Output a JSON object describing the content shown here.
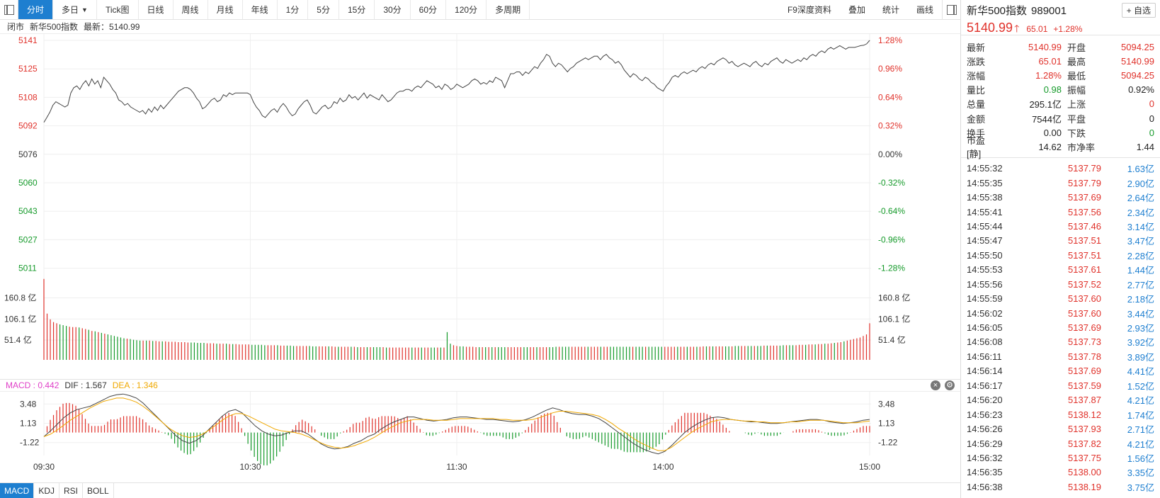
{
  "toolbar": {
    "tabs": [
      {
        "label": "分时",
        "active": true
      },
      {
        "label": "多日",
        "dropdown": true
      },
      {
        "label": "Tick图"
      },
      {
        "label": "日线"
      },
      {
        "label": "周线"
      },
      {
        "label": "月线"
      },
      {
        "label": "年线"
      },
      {
        "label": "1分"
      },
      {
        "label": "5分"
      },
      {
        "label": "15分"
      },
      {
        "label": "30分"
      },
      {
        "label": "60分"
      },
      {
        "label": "120分"
      },
      {
        "label": "多周期"
      }
    ],
    "right_tabs": [
      "F9深度资料",
      "叠加",
      "统计",
      "画线"
    ]
  },
  "infobar": {
    "status": "闭市",
    "name": "新华500指数",
    "latest": "最新：5140.99"
  },
  "chart_data": {
    "type": "line",
    "price_axis_left": [
      "5141",
      "5125",
      "5108",
      "5092",
      "5076",
      "5060",
      "5043",
      "5027",
      "5011"
    ],
    "pct_axis_right": [
      "1.28%",
      "0.96%",
      "0.64%",
      "0.32%",
      "0.00%",
      "-0.32%",
      "-0.64%",
      "-0.96%",
      "-1.28%"
    ],
    "price_range": [
      5011,
      5141
    ],
    "prev_close": 5076,
    "volume_axis": [
      "160.8 亿",
      "106.1 亿",
      "51.4 亿"
    ],
    "volume_range": [
      0,
      215
    ],
    "time_labels": [
      "09:30",
      "10:30",
      "11:30",
      "14:00",
      "15:00"
    ],
    "price_series": [
      5094.25,
      5097,
      5100,
      5104,
      5106,
      5105,
      5104,
      5103,
      5104,
      5111,
      5114,
      5115,
      5113,
      5116,
      5118,
      5115,
      5119,
      5116,
      5118,
      5114,
      5120,
      5118,
      5116,
      5113,
      5111,
      5107,
      5106,
      5104,
      5105,
      5103,
      5102,
      5101,
      5100,
      5101,
      5099,
      5102,
      5100,
      5103,
      5101,
      5104,
      5102,
      5104,
      5106,
      5108,
      5110,
      5112,
      5113,
      5114,
      5114,
      5113,
      5111,
      5108,
      5106,
      5102,
      5103,
      5105,
      5107,
      5108,
      5106,
      5107,
      5110,
      5109,
      5111,
      5110,
      5111,
      5111,
      5111,
      5111,
      5111,
      5110,
      5106,
      5103,
      5101,
      5098,
      5097,
      5099,
      5101,
      5102,
      5100,
      5103,
      5105,
      5103,
      5100,
      5098,
      5099,
      5102,
      5104,
      5106,
      5107,
      5104,
      5100,
      5099,
      5101,
      5103,
      5104,
      5102,
      5103,
      5106,
      5105,
      5108,
      5106,
      5107,
      5110,
      5108,
      5109,
      5107,
      5109,
      5111,
      5108,
      5110,
      5109,
      5108,
      5107,
      5110,
      5108,
      5106,
      5107,
      5109,
      5111,
      5112,
      5112,
      5113,
      5113,
      5112,
      5114,
      5115,
      5114,
      5116,
      5118,
      5117,
      5116,
      5114,
      5115,
      5113,
      5116,
      5115,
      5113,
      5114,
      5116,
      5115,
      5114,
      5115,
      5116,
      5118,
      5119,
      5118,
      5116,
      5117,
      5116,
      5118,
      5117,
      5120,
      5119,
      5118,
      5114,
      5118,
      5122,
      5122,
      5123,
      5123,
      5121,
      5123,
      5122,
      5124,
      5126,
      5125,
      5128,
      5130,
      5133,
      5132,
      5128,
      5126,
      5128,
      5127,
      5125,
      5123,
      5125,
      5126,
      5128,
      5129,
      5130,
      5131,
      5130,
      5131,
      5132,
      5132,
      5130,
      5132,
      5133,
      5131,
      5130,
      5128,
      5129,
      5127,
      5124,
      5122,
      5120,
      5122,
      5121,
      5119,
      5118,
      5120,
      5119,
      5117,
      5116,
      5114,
      5113,
      5112,
      5115,
      5117,
      5120,
      5121,
      5120,
      5122,
      5123,
      5122,
      5123,
      5124,
      5123,
      5125,
      5126,
      5125,
      5127,
      5128,
      5127,
      5129,
      5130,
      5131,
      5130,
      5128,
      5129,
      5127,
      5126,
      5127,
      5128,
      5127,
      5126,
      5128,
      5129,
      5127,
      5126,
      5128,
      5127,
      5129,
      5130,
      5131,
      5129,
      5128,
      5130,
      5129,
      5128,
      5129,
      5130,
      5129,
      5131,
      5130,
      5132,
      5133,
      5132,
      5134,
      5135,
      5134,
      5136,
      5137,
      5136,
      5137,
      5138,
      5137,
      5136,
      5137,
      5137,
      5137,
      5137.5,
      5138,
      5138.2,
      5139,
      5140.99
    ],
    "volume_series": [
      210,
      120,
      105,
      98,
      95,
      92,
      90,
      88,
      86,
      85,
      85,
      84,
      82,
      80,
      78,
      75,
      74,
      72,
      70,
      68,
      66,
      64,
      62,
      60,
      58,
      56,
      55,
      54,
      52,
      51,
      50,
      50,
      50,
      50,
      49,
      49,
      48,
      48,
      48,
      47,
      47,
      47,
      46,
      46,
      46,
      45,
      45,
      45,
      44,
      44,
      44,
      43,
      43,
      43,
      42,
      42,
      42,
      42,
      41,
      41,
      41,
      40,
      40,
      40,
      40,
      39,
      39,
      39,
      39,
      38,
      38,
      38,
      38,
      38,
      37,
      37,
      37,
      37,
      36,
      36,
      36,
      36,
      36,
      36,
      35,
      35,
      35,
      35,
      35,
      35,
      35,
      34,
      34,
      34,
      34,
      34,
      34,
      34,
      33,
      33,
      33,
      33,
      33,
      33,
      33,
      33,
      33,
      32,
      32,
      32,
      32,
      32,
      32,
      32,
      32,
      32,
      32,
      32,
      32,
      32,
      32,
      32,
      32,
      32,
      32,
      32,
      72,
      42,
      38,
      36,
      35,
      35,
      34,
      34,
      34,
      33,
      33,
      33,
      33,
      33,
      33,
      33,
      33,
      33,
      33,
      33,
      33,
      33,
      33,
      33,
      33,
      33,
      33,
      33,
      33,
      33,
      33,
      33,
      33,
      33,
      34,
      34,
      34,
      34,
      34,
      34,
      34,
      34,
      34,
      34,
      34,
      34,
      34,
      34,
      34,
      34,
      34,
      34,
      34,
      34,
      34,
      34,
      34,
      34,
      34,
      34,
      34,
      34,
      34,
      34,
      34,
      34,
      34,
      34,
      34,
      34,
      34,
      34,
      34,
      34,
      34,
      34,
      34,
      34,
      34,
      34,
      35,
      35,
      35,
      35,
      35,
      35,
      35,
      35,
      35,
      35,
      36,
      36,
      36,
      36,
      36,
      36,
      36,
      36,
      36,
      37,
      37,
      37,
      37,
      37,
      37,
      38,
      38,
      38,
      38,
      38,
      39,
      39,
      39,
      40,
      40,
      40,
      41,
      41,
      42,
      42,
      43,
      44,
      45,
      46,
      48,
      50,
      52,
      54,
      56,
      58,
      62,
      66,
      95
    ]
  },
  "macd": {
    "header": {
      "macd": "MACD : 0.442",
      "dif": "DIF : 1.567",
      "dea": "DEA : 1.346"
    },
    "axis": [
      "3.48",
      "1.13",
      "-1.22"
    ],
    "range": [
      -2.8,
      4.8
    ],
    "dif_series": [
      -0.5,
      0.2,
      1.0,
      1.8,
      2.4,
      2.8,
      3.0,
      3.2,
      3.6,
      4.0,
      4.4,
      4.6,
      4.7,
      4.5,
      4.2,
      3.6,
      2.8,
      2.0,
      1.2,
      0.4,
      -0.4,
      -1.0,
      -1.3,
      -1.0,
      -0.4,
      0.4,
      1.2,
      2.0,
      2.6,
      2.8,
      2.4,
      1.6,
      0.8,
      0.2,
      -0.2,
      -0.4,
      -0.3,
      0,
      0.2,
      0.2,
      -0.2,
      -0.8,
      -1.4,
      -1.8,
      -2.0,
      -1.9,
      -1.7,
      -1.3,
      -1.0,
      -0.5,
      -0.2,
      0.4,
      0.9,
      1.3,
      1.6,
      1.9,
      1.9,
      1.7,
      1.5,
      1.4,
      1.5,
      1.6,
      1.8,
      1.9,
      1.9,
      1.8,
      1.7,
      1.6,
      1.6,
      1.5,
      1.4,
      1.3,
      1.4,
      1.6,
      1.9,
      2.3,
      2.7,
      3.0,
      2.8,
      2.5,
      2.3,
      2.2,
      2.2,
      2.0,
      1.7,
      1.2,
      0.6,
      0,
      -0.6,
      -1.2,
      -1.7,
      -2.1,
      -2.4,
      -2.6,
      -2.3,
      -1.6,
      -0.8,
      0,
      0.6,
      1.1,
      1.5,
      1.8,
      1.9,
      1.8,
      1.6,
      1.5,
      1.4,
      1.3,
      1.3,
      1.2,
      1.1,
      1.1,
      1.2,
      1.3,
      1.4,
      1.5,
      1.6,
      1.6,
      1.5,
      1.3,
      1.2,
      1.1,
      1.2,
      1.3,
      1.5,
      1.6
    ],
    "dea_series": [
      -0.5,
      -0.2,
      0.3,
      0.9,
      1.5,
      2.0,
      2.5,
      3.0,
      3.4,
      3.8,
      4.0,
      4.2,
      4.2,
      4.0,
      3.7,
      3.2,
      2.6,
      1.9,
      1.2,
      0.5,
      0,
      -0.4,
      -0.6,
      -0.5,
      -0.2,
      0.3,
      0.9,
      1.5,
      2.0,
      2.3,
      2.3,
      2.0,
      1.6,
      1.2,
      0.8,
      0.4,
      0.2,
      0.1,
      0,
      -0.2,
      -0.5,
      -0.9,
      -1.3,
      -1.6,
      -1.8,
      -1.9,
      -1.8,
      -1.6,
      -1.3,
      -1.0,
      -0.6,
      -0.1,
      0.4,
      0.8,
      1.2,
      1.4,
      1.6,
      1.6,
      1.6,
      1.5,
      1.5,
      1.5,
      1.6,
      1.7,
      1.7,
      1.7,
      1.7,
      1.7,
      1.7,
      1.6,
      1.6,
      1.5,
      1.5,
      1.5,
      1.6,
      1.8,
      2.1,
      2.4,
      2.6,
      2.6,
      2.5,
      2.4,
      2.3,
      2.2,
      2.0,
      1.6,
      1.1,
      0.5,
      0,
      -0.6,
      -1.1,
      -1.5,
      -1.9,
      -2.2,
      -2.2,
      -1.8,
      -1.2,
      -0.6,
      0,
      0.5,
      0.9,
      1.3,
      1.5,
      1.6,
      1.6,
      1.5,
      1.4,
      1.4,
      1.3,
      1.3,
      1.2,
      1.2,
      1.2,
      1.3,
      1.3,
      1.4,
      1.5,
      1.5,
      1.5,
      1.4,
      1.3,
      1.2,
      1.2,
      1.2,
      1.3,
      1.4
    ]
  },
  "bottom_tabs": [
    {
      "label": "MACD",
      "active": true
    },
    {
      "label": "KDJ"
    },
    {
      "label": "RSI"
    },
    {
      "label": "BOLL"
    }
  ],
  "panel": {
    "name": "新华500指数",
    "code": "989001",
    "watch": "+ 自选",
    "price": "5140.99",
    "change": "65.01",
    "change_pct": "+1.28%",
    "stats": [
      {
        "k": "最新",
        "v": "5140.99",
        "vc": "red",
        "k2": "开盘",
        "v2": "5094.25",
        "v2c": "red"
      },
      {
        "k": "涨跌",
        "v": "65.01",
        "vc": "red",
        "k2": "最高",
        "v2": "5140.99",
        "v2c": "red"
      },
      {
        "k": "涨幅",
        "v": "1.28%",
        "vc": "red",
        "k2": "最低",
        "v2": "5094.25",
        "v2c": "red"
      },
      {
        "k": "量比",
        "v": "0.98",
        "vc": "green",
        "k2": "振幅",
        "v2": "0.92%",
        "v2c": "dark"
      },
      {
        "k": "总量",
        "v": "295.1亿",
        "vc": "dark",
        "k2": "上涨",
        "v2": "0",
        "v2c": "red"
      },
      {
        "k": "金额",
        "v": "7544亿",
        "vc": "dark",
        "k2": "平盘",
        "v2": "0",
        "v2c": "dark"
      },
      {
        "k": "换手",
        "v": "0.00",
        "vc": "dark",
        "k2": "下跌",
        "v2": "0",
        "v2c": "green"
      },
      {
        "k": "市盈[静]",
        "v": "14.62",
        "vc": "dark",
        "k2": "市净率",
        "v2": "1.44",
        "v2c": "dark"
      }
    ],
    "ticks": [
      {
        "t": "14:55:32",
        "p": "5137.79",
        "a": "1.63亿"
      },
      {
        "t": "14:55:35",
        "p": "5137.79",
        "a": "2.90亿"
      },
      {
        "t": "14:55:38",
        "p": "5137.69",
        "a": "2.64亿"
      },
      {
        "t": "14:55:41",
        "p": "5137.56",
        "a": "2.34亿"
      },
      {
        "t": "14:55:44",
        "p": "5137.46",
        "a": "3.14亿"
      },
      {
        "t": "14:55:47",
        "p": "5137.51",
        "a": "3.47亿"
      },
      {
        "t": "14:55:50",
        "p": "5137.51",
        "a": "2.28亿"
      },
      {
        "t": "14:55:53",
        "p": "5137.61",
        "a": "1.44亿"
      },
      {
        "t": "14:55:56",
        "p": "5137.52",
        "a": "2.77亿"
      },
      {
        "t": "14:55:59",
        "p": "5137.60",
        "a": "2.18亿"
      },
      {
        "t": "14:56:02",
        "p": "5137.60",
        "a": "3.44亿"
      },
      {
        "t": "14:56:05",
        "p": "5137.69",
        "a": "2.93亿"
      },
      {
        "t": "14:56:08",
        "p": "5137.73",
        "a": "3.92亿"
      },
      {
        "t": "14:56:11",
        "p": "5137.78",
        "a": "3.89亿"
      },
      {
        "t": "14:56:14",
        "p": "5137.69",
        "a": "4.41亿"
      },
      {
        "t": "14:56:17",
        "p": "5137.59",
        "a": "1.52亿"
      },
      {
        "t": "14:56:20",
        "p": "5137.87",
        "a": "4.21亿"
      },
      {
        "t": "14:56:23",
        "p": "5138.12",
        "a": "1.74亿"
      },
      {
        "t": "14:56:26",
        "p": "5137.93",
        "a": "2.71亿"
      },
      {
        "t": "14:56:29",
        "p": "5137.82",
        "a": "4.21亿"
      },
      {
        "t": "14:56:32",
        "p": "5137.75",
        "a": "1.56亿"
      },
      {
        "t": "14:56:35",
        "p": "5138.00",
        "a": "3.35亿"
      },
      {
        "t": "14:56:38",
        "p": "5138.19",
        "a": "3.75亿"
      }
    ]
  },
  "colors": {
    "up": "#e0312a",
    "down": "#159a2a",
    "accent": "#1e7fd0",
    "macd_label": "#e040c8",
    "dea_line": "#f0a800"
  }
}
